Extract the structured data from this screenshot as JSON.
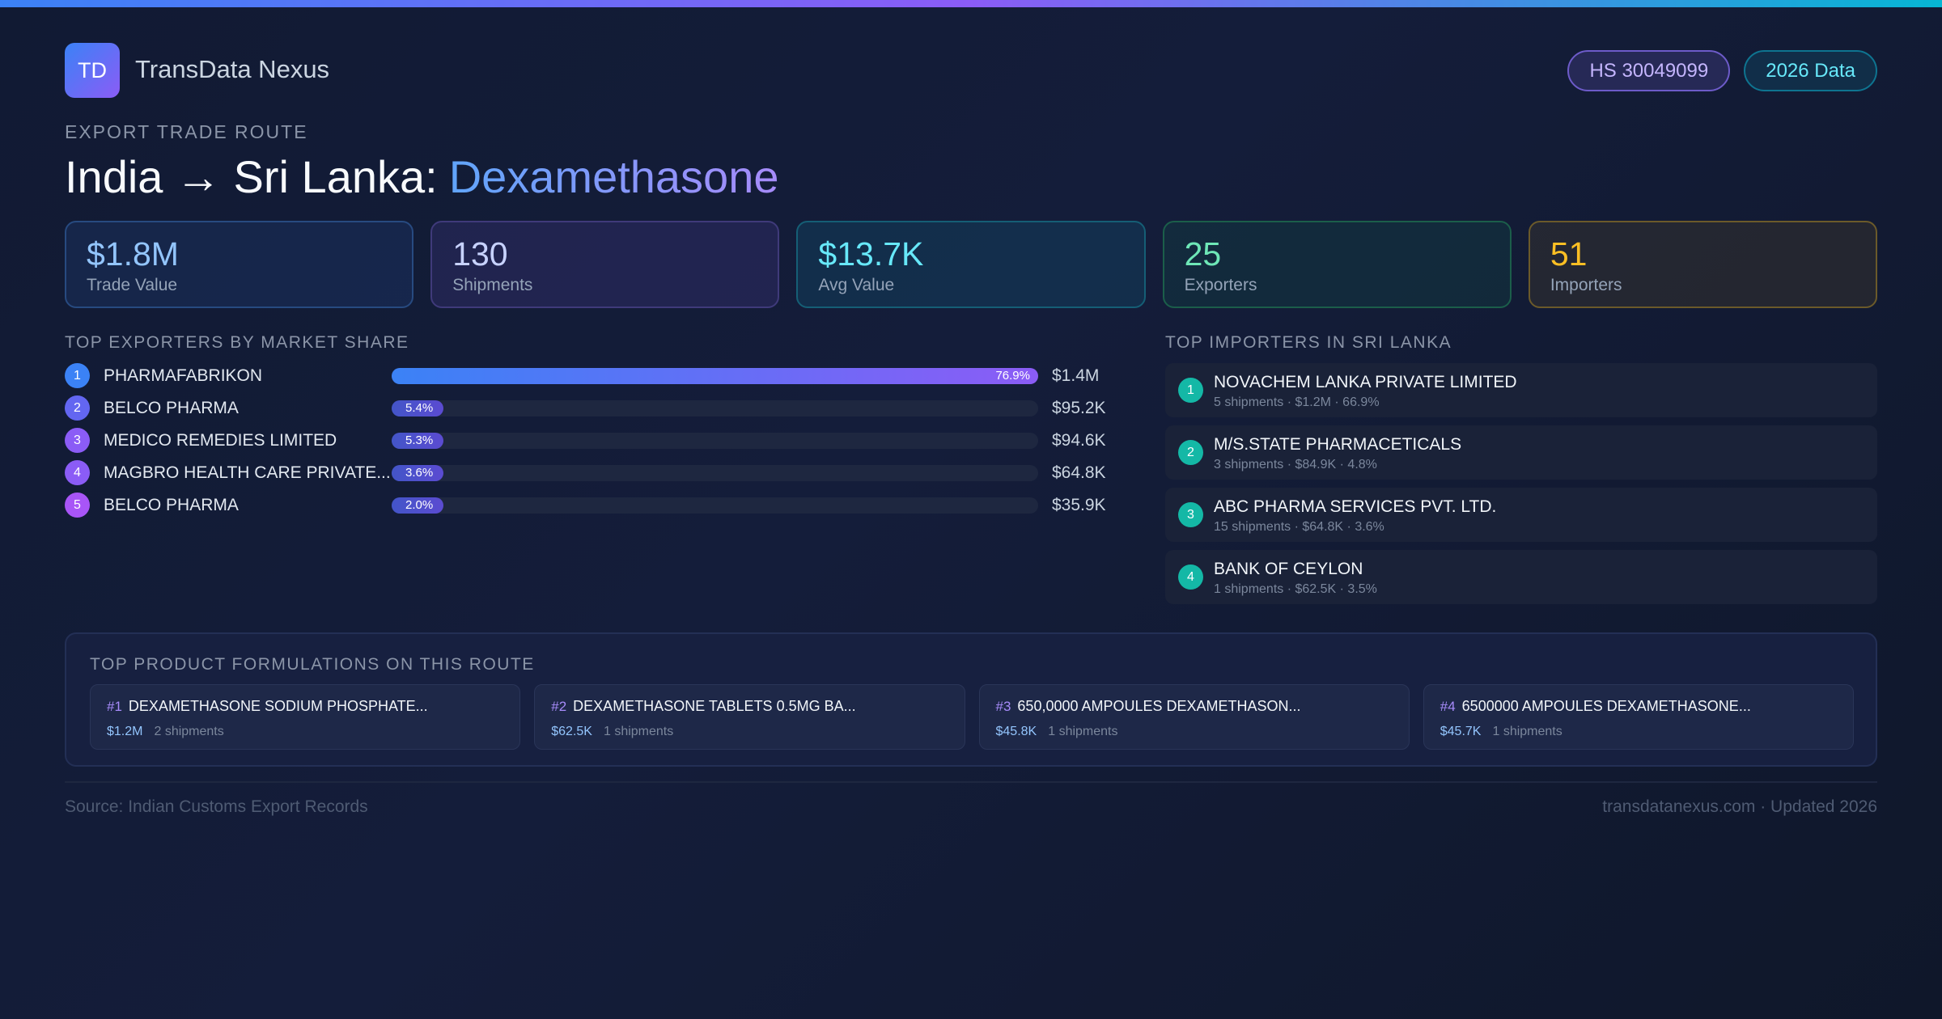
{
  "header": {
    "logo": "TD",
    "brand": "TransData Nexus",
    "badges": [
      "HS 30049099",
      "2026 Data"
    ]
  },
  "route": {
    "kicker": "EXPORT TRADE ROUTE",
    "title": "India → Sri Lanka:",
    "product": "Dexamethasone"
  },
  "stats": [
    {
      "value": "$1.8M",
      "label": "Trade Value"
    },
    {
      "value": "130",
      "label": "Shipments"
    },
    {
      "value": "$13.7K",
      "label": "Avg Value"
    },
    {
      "value": "25",
      "label": "Exporters"
    },
    {
      "value": "51",
      "label": "Importers"
    }
  ],
  "exporters": {
    "title": "TOP EXPORTERS BY MARKET SHARE",
    "rows": [
      {
        "rank": "1",
        "name": "PHARMAFABRIKON",
        "share": 76.9,
        "share_label": "76.9%",
        "value": "$1.4M"
      },
      {
        "rank": "2",
        "name": "BELCO PHARMA",
        "share": 5.4,
        "share_label": "5.4%",
        "value": "$95.2K"
      },
      {
        "rank": "3",
        "name": "MEDICO REMEDIES LIMITED",
        "share": 5.3,
        "share_label": "5.3%",
        "value": "$94.6K"
      },
      {
        "rank": "4",
        "name": "MAGBRO HEALTH CARE PRIVATE...",
        "share": 3.6,
        "share_label": "3.6%",
        "value": "$64.8K"
      },
      {
        "rank": "5",
        "name": "BELCO PHARMA",
        "share": 2.0,
        "share_label": "2.0%",
        "value": "$35.9K"
      }
    ]
  },
  "importers": {
    "title": "TOP IMPORTERS IN SRI LANKA",
    "rows": [
      {
        "rank": "1",
        "name": "NOVACHEM LANKA PRIVATE LIMITED",
        "detail": "5 shipments · $1.2M · 66.9%"
      },
      {
        "rank": "2",
        "name": "M/S.STATE PHARMACETICALS",
        "detail": "3 shipments · $84.9K · 4.8%"
      },
      {
        "rank": "3",
        "name": "ABC PHARMA SERVICES PVT. LTD.",
        "detail": "15 shipments · $64.8K · 3.6%"
      },
      {
        "rank": "4",
        "name": "BANK OF CEYLON",
        "detail": "1 shipments · $62.5K · 3.5%"
      }
    ]
  },
  "formulations": {
    "title": "TOP PRODUCT FORMULATIONS ON THIS ROUTE",
    "items": [
      {
        "rank": "#1",
        "name": "DEXAMETHASONE SODIUM PHOSPHATE...",
        "value": "$1.2M",
        "shipments": "2 shipments"
      },
      {
        "rank": "#2",
        "name": "DEXAMETHASONE TABLETS 0.5MG BA...",
        "value": "$62.5K",
        "shipments": "1 shipments"
      },
      {
        "rank": "#3",
        "name": "650,0000 AMPOULES DEXAMETHASON...",
        "value": "$45.8K",
        "shipments": "1 shipments"
      },
      {
        "rank": "#4",
        "name": "6500000 AMPOULES DEXAMETHASONE...",
        "value": "$45.7K",
        "shipments": "1 shipments"
      }
    ]
  },
  "footer": {
    "source": "Source: Indian Customs Export Records",
    "site": "transdatanexus.com · Updated 2026"
  }
}
